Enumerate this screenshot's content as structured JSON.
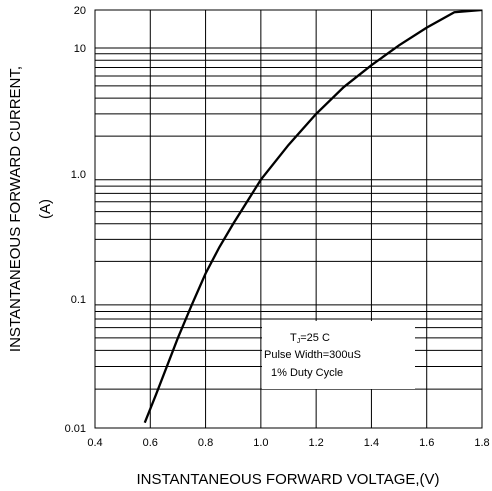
{
  "chart_data": {
    "type": "line",
    "title": "",
    "xlabel": "INSTANTANEOUS FORWARD VOLTAGE,(V)",
    "ylabel_line1": "INSTANTANEOUS FORWARD CURRENT,",
    "ylabel_line2": "(A)",
    "x_scale": "linear",
    "y_scale": "log",
    "xlim": [
      0.4,
      1.8
    ],
    "ylim": [
      0.01,
      20
    ],
    "x_ticks": [
      0.4,
      0.6,
      0.8,
      1.0,
      1.2,
      1.4,
      1.6,
      1.8
    ],
    "x_tick_labels": [
      "0.4",
      "0.6",
      "0.8",
      "1.0",
      "1.2",
      "1.4",
      "1.6",
      "1.8"
    ],
    "y_tick_labels": [
      {
        "value": 0.01,
        "label": "0.01"
      },
      {
        "value": 0.1,
        "label": "0.1"
      },
      {
        "value": 1.0,
        "label": "1.0"
      },
      {
        "value": 10,
        "label": "10"
      },
      {
        "value": 20,
        "label": "20"
      }
    ],
    "grid": true,
    "series": [
      {
        "x": [
          0.58,
          0.62,
          0.66,
          0.7,
          0.75,
          0.8,
          0.85,
          0.9,
          1.0,
          1.1,
          1.2,
          1.3,
          1.4,
          1.5,
          1.6,
          1.7,
          1.8
        ],
        "y": [
          0.011,
          0.018,
          0.03,
          0.05,
          0.09,
          0.16,
          0.26,
          0.4,
          0.9,
          1.7,
          3.0,
          4.9,
          7.3,
          10.5,
          14.5,
          19.2,
          24.5
        ],
        "color": "#000000"
      }
    ],
    "annotation": {
      "line1_prefix": "T",
      "line1_sub": "J",
      "line1_suffix": "=25    C",
      "line2": "Pulse Width=300uS",
      "line3": "1% Duty Cycle"
    }
  }
}
